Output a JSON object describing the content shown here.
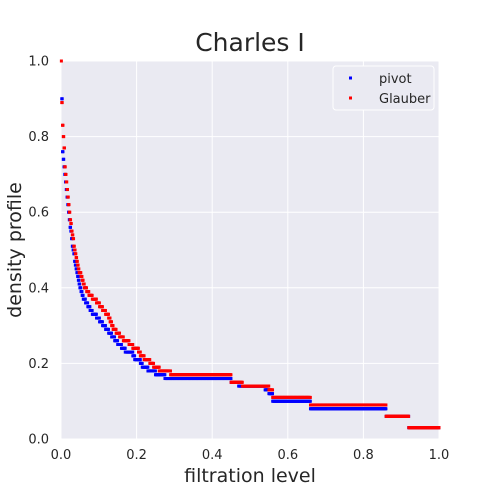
{
  "chart_data": {
    "type": "scatter",
    "title": "Charles I",
    "xlabel": "filtration level",
    "ylabel": "density profile",
    "xlim": [
      0,
      1
    ],
    "ylim": [
      0,
      1
    ],
    "xticks": [
      "0.0",
      "0.2",
      "0.4",
      "0.6",
      "0.8",
      "1.0"
    ],
    "yticks": [
      "0.0",
      "0.2",
      "0.4",
      "0.6",
      "0.8",
      "1.0"
    ],
    "grid": true,
    "legend_position": "top-right",
    "background": "#eaeaf2",
    "series": [
      {
        "name": "pivot",
        "color": "#0000ff",
        "points": [
          [
            0.002,
            0.9
          ],
          [
            0.004,
            0.76
          ],
          [
            0.006,
            0.74
          ],
          [
            0.008,
            0.72
          ],
          [
            0.01,
            0.7
          ],
          [
            0.012,
            0.68
          ],
          [
            0.014,
            0.66
          ],
          [
            0.016,
            0.64
          ],
          [
            0.018,
            0.62
          ],
          [
            0.02,
            0.6
          ],
          [
            0.022,
            0.58
          ],
          [
            0.024,
            0.56
          ],
          [
            0.026,
            0.55
          ],
          [
            0.028,
            0.53
          ],
          [
            0.03,
            0.51
          ],
          [
            0.032,
            0.5
          ],
          [
            0.034,
            0.49
          ],
          [
            0.036,
            0.47
          ],
          [
            0.038,
            0.46
          ],
          [
            0.04,
            0.45
          ],
          [
            0.042,
            0.44
          ],
          [
            0.044,
            0.43
          ],
          [
            0.046,
            0.42
          ],
          [
            0.048,
            0.41
          ],
          [
            0.05,
            0.4
          ],
          [
            0.053,
            0.39
          ],
          [
            0.056,
            0.38
          ],
          [
            0.059,
            0.37
          ],
          [
            0.062,
            0.37
          ],
          [
            0.065,
            0.36
          ],
          [
            0.068,
            0.36
          ],
          [
            0.071,
            0.35
          ],
          [
            0.074,
            0.35
          ],
          [
            0.077,
            0.34
          ],
          [
            0.08,
            0.34
          ],
          [
            0.083,
            0.33
          ],
          [
            0.086,
            0.33
          ],
          [
            0.09,
            0.33
          ],
          [
            0.094,
            0.32
          ],
          [
            0.098,
            0.32
          ],
          [
            0.102,
            0.31
          ],
          [
            0.106,
            0.31
          ],
          [
            0.11,
            0.3
          ],
          [
            0.114,
            0.3
          ],
          [
            0.118,
            0.29
          ],
          [
            0.122,
            0.29
          ],
          [
            0.126,
            0.28
          ],
          [
            0.13,
            0.28
          ],
          [
            0.134,
            0.27
          ],
          [
            0.138,
            0.27
          ],
          [
            0.142,
            0.26
          ],
          [
            0.146,
            0.26
          ],
          [
            0.15,
            0.25
          ],
          [
            0.155,
            0.25
          ],
          [
            0.16,
            0.24
          ],
          [
            0.165,
            0.24
          ],
          [
            0.17,
            0.23
          ],
          [
            0.175,
            0.23
          ],
          [
            0.18,
            0.23
          ],
          [
            0.185,
            0.23
          ],
          [
            0.19,
            0.22
          ],
          [
            0.195,
            0.21
          ],
          [
            0.2,
            0.21
          ],
          [
            0.205,
            0.21
          ],
          [
            0.21,
            0.2
          ],
          [
            0.215,
            0.19
          ],
          [
            0.22,
            0.19
          ],
          [
            0.225,
            0.19
          ],
          [
            0.23,
            0.18
          ],
          [
            0.235,
            0.18
          ],
          [
            0.24,
            0.18
          ],
          [
            0.245,
            0.18
          ],
          [
            0.25,
            0.17
          ],
          [
            0.255,
            0.17
          ],
          [
            0.26,
            0.17
          ],
          [
            0.265,
            0.17
          ],
          [
            0.27,
            0.17
          ],
          [
            0.275,
            0.16
          ],
          [
            0.28,
            0.16
          ],
          [
            0.29,
            0.16
          ],
          [
            0.3,
            0.16
          ],
          [
            0.31,
            0.16
          ],
          [
            0.32,
            0.16
          ],
          [
            0.33,
            0.16
          ],
          [
            0.34,
            0.16
          ],
          [
            0.35,
            0.16
          ],
          [
            0.36,
            0.16
          ],
          [
            0.37,
            0.16
          ],
          [
            0.38,
            0.16
          ],
          [
            0.39,
            0.16
          ],
          [
            0.4,
            0.16
          ],
          [
            0.41,
            0.16
          ],
          [
            0.42,
            0.16
          ],
          [
            0.43,
            0.16
          ],
          [
            0.44,
            0.16
          ],
          [
            0.45,
            0.15
          ],
          [
            0.46,
            0.15
          ],
          [
            0.47,
            0.14
          ],
          [
            0.48,
            0.14
          ],
          [
            0.49,
            0.14
          ],
          [
            0.5,
            0.14
          ],
          [
            0.51,
            0.14
          ],
          [
            0.52,
            0.14
          ],
          [
            0.53,
            0.14
          ],
          [
            0.54,
            0.13
          ],
          [
            0.55,
            0.12
          ],
          [
            0.56,
            0.1
          ],
          [
            0.57,
            0.1
          ],
          [
            0.58,
            0.1
          ],
          [
            0.59,
            0.1
          ],
          [
            0.6,
            0.1
          ],
          [
            0.61,
            0.1
          ],
          [
            0.62,
            0.1
          ],
          [
            0.63,
            0.1
          ],
          [
            0.64,
            0.1
          ],
          [
            0.65,
            0.1
          ],
          [
            0.66,
            0.08
          ],
          [
            0.67,
            0.08
          ],
          [
            0.68,
            0.08
          ],
          [
            0.69,
            0.08
          ],
          [
            0.7,
            0.08
          ],
          [
            0.71,
            0.08
          ],
          [
            0.72,
            0.08
          ],
          [
            0.73,
            0.08
          ],
          [
            0.74,
            0.08
          ],
          [
            0.75,
            0.08
          ],
          [
            0.76,
            0.08
          ],
          [
            0.77,
            0.08
          ],
          [
            0.78,
            0.08
          ],
          [
            0.79,
            0.08
          ],
          [
            0.8,
            0.08
          ],
          [
            0.81,
            0.08
          ],
          [
            0.82,
            0.08
          ],
          [
            0.83,
            0.08
          ],
          [
            0.84,
            0.08
          ],
          [
            0.85,
            0.08
          ],
          [
            0.86,
            0.06
          ],
          [
            0.87,
            0.06
          ],
          [
            0.88,
            0.06
          ],
          [
            0.89,
            0.06
          ],
          [
            0.9,
            0.06
          ],
          [
            0.91,
            0.06
          ],
          [
            0.92,
            0.03
          ],
          [
            0.93,
            0.03
          ],
          [
            0.94,
            0.03
          ],
          [
            0.95,
            0.03
          ],
          [
            0.96,
            0.03
          ],
          [
            0.97,
            0.03
          ],
          [
            0.98,
            0.03
          ],
          [
            0.99,
            0.03
          ],
          [
            1.0,
            0.03
          ]
        ]
      },
      {
        "name": "Glauber",
        "color": "#ff0000",
        "points": [
          [
            0.001,
            1.0
          ],
          [
            0.002,
            0.89
          ],
          [
            0.004,
            0.83
          ],
          [
            0.006,
            0.8
          ],
          [
            0.008,
            0.77
          ],
          [
            0.01,
            0.72
          ],
          [
            0.012,
            0.7
          ],
          [
            0.014,
            0.68
          ],
          [
            0.016,
            0.66
          ],
          [
            0.018,
            0.64
          ],
          [
            0.02,
            0.62
          ],
          [
            0.022,
            0.6
          ],
          [
            0.024,
            0.58
          ],
          [
            0.026,
            0.57
          ],
          [
            0.028,
            0.55
          ],
          [
            0.03,
            0.54
          ],
          [
            0.032,
            0.53
          ],
          [
            0.034,
            0.51
          ],
          [
            0.036,
            0.5
          ],
          [
            0.038,
            0.49
          ],
          [
            0.04,
            0.48
          ],
          [
            0.042,
            0.47
          ],
          [
            0.044,
            0.46
          ],
          [
            0.046,
            0.45
          ],
          [
            0.048,
            0.44
          ],
          [
            0.05,
            0.44
          ],
          [
            0.053,
            0.43
          ],
          [
            0.056,
            0.42
          ],
          [
            0.059,
            0.41
          ],
          [
            0.062,
            0.4
          ],
          [
            0.065,
            0.4
          ],
          [
            0.068,
            0.39
          ],
          [
            0.071,
            0.39
          ],
          [
            0.074,
            0.38
          ],
          [
            0.077,
            0.38
          ],
          [
            0.08,
            0.38
          ],
          [
            0.083,
            0.37
          ],
          [
            0.086,
            0.37
          ],
          [
            0.09,
            0.37
          ],
          [
            0.094,
            0.36
          ],
          [
            0.098,
            0.36
          ],
          [
            0.102,
            0.35
          ],
          [
            0.106,
            0.35
          ],
          [
            0.11,
            0.34
          ],
          [
            0.114,
            0.34
          ],
          [
            0.118,
            0.33
          ],
          [
            0.122,
            0.33
          ],
          [
            0.126,
            0.32
          ],
          [
            0.13,
            0.31
          ],
          [
            0.134,
            0.3
          ],
          [
            0.138,
            0.29
          ],
          [
            0.142,
            0.29
          ],
          [
            0.146,
            0.28
          ],
          [
            0.15,
            0.28
          ],
          [
            0.155,
            0.27
          ],
          [
            0.16,
            0.27
          ],
          [
            0.165,
            0.26
          ],
          [
            0.17,
            0.26
          ],
          [
            0.175,
            0.26
          ],
          [
            0.18,
            0.25
          ],
          [
            0.185,
            0.25
          ],
          [
            0.19,
            0.24
          ],
          [
            0.195,
            0.24
          ],
          [
            0.2,
            0.24
          ],
          [
            0.205,
            0.23
          ],
          [
            0.21,
            0.22
          ],
          [
            0.215,
            0.22
          ],
          [
            0.22,
            0.21
          ],
          [
            0.225,
            0.21
          ],
          [
            0.23,
            0.21
          ],
          [
            0.235,
            0.2
          ],
          [
            0.24,
            0.2
          ],
          [
            0.245,
            0.19
          ],
          [
            0.25,
            0.19
          ],
          [
            0.255,
            0.19
          ],
          [
            0.26,
            0.18
          ],
          [
            0.265,
            0.18
          ],
          [
            0.27,
            0.18
          ],
          [
            0.275,
            0.18
          ],
          [
            0.28,
            0.18
          ],
          [
            0.29,
            0.17
          ],
          [
            0.3,
            0.17
          ],
          [
            0.31,
            0.17
          ],
          [
            0.32,
            0.17
          ],
          [
            0.33,
            0.17
          ],
          [
            0.34,
            0.17
          ],
          [
            0.35,
            0.17
          ],
          [
            0.36,
            0.17
          ],
          [
            0.37,
            0.17
          ],
          [
            0.38,
            0.17
          ],
          [
            0.39,
            0.17
          ],
          [
            0.4,
            0.17
          ],
          [
            0.41,
            0.17
          ],
          [
            0.42,
            0.17
          ],
          [
            0.43,
            0.17
          ],
          [
            0.44,
            0.17
          ],
          [
            0.45,
            0.15
          ],
          [
            0.46,
            0.15
          ],
          [
            0.47,
            0.15
          ],
          [
            0.48,
            0.14
          ],
          [
            0.49,
            0.14
          ],
          [
            0.5,
            0.14
          ],
          [
            0.51,
            0.14
          ],
          [
            0.52,
            0.14
          ],
          [
            0.53,
            0.14
          ],
          [
            0.54,
            0.14
          ],
          [
            0.55,
            0.13
          ],
          [
            0.56,
            0.11
          ],
          [
            0.57,
            0.11
          ],
          [
            0.58,
            0.11
          ],
          [
            0.59,
            0.11
          ],
          [
            0.6,
            0.11
          ],
          [
            0.61,
            0.11
          ],
          [
            0.62,
            0.11
          ],
          [
            0.63,
            0.11
          ],
          [
            0.64,
            0.11
          ],
          [
            0.65,
            0.11
          ],
          [
            0.66,
            0.09
          ],
          [
            0.67,
            0.09
          ],
          [
            0.68,
            0.09
          ],
          [
            0.69,
            0.09
          ],
          [
            0.7,
            0.09
          ],
          [
            0.71,
            0.09
          ],
          [
            0.72,
            0.09
          ],
          [
            0.73,
            0.09
          ],
          [
            0.74,
            0.09
          ],
          [
            0.75,
            0.09
          ],
          [
            0.76,
            0.09
          ],
          [
            0.77,
            0.09
          ],
          [
            0.78,
            0.09
          ],
          [
            0.79,
            0.09
          ],
          [
            0.8,
            0.09
          ],
          [
            0.81,
            0.09
          ],
          [
            0.82,
            0.09
          ],
          [
            0.83,
            0.09
          ],
          [
            0.84,
            0.09
          ],
          [
            0.85,
            0.09
          ],
          [
            0.86,
            0.06
          ],
          [
            0.87,
            0.06
          ],
          [
            0.88,
            0.06
          ],
          [
            0.89,
            0.06
          ],
          [
            0.9,
            0.06
          ],
          [
            0.91,
            0.06
          ],
          [
            0.92,
            0.03
          ],
          [
            0.93,
            0.03
          ],
          [
            0.94,
            0.03
          ],
          [
            0.95,
            0.03
          ],
          [
            0.96,
            0.03
          ],
          [
            0.97,
            0.03
          ],
          [
            0.98,
            0.03
          ],
          [
            0.99,
            0.03
          ],
          [
            1.0,
            0.03
          ]
        ]
      }
    ]
  }
}
